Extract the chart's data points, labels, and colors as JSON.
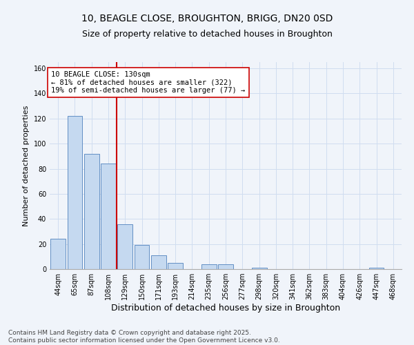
{
  "title_line1": "10, BEAGLE CLOSE, BROUGHTON, BRIGG, DN20 0SD",
  "title_line2": "Size of property relative to detached houses in Broughton",
  "categories": [
    "44sqm",
    "65sqm",
    "87sqm",
    "108sqm",
    "129sqm",
    "150sqm",
    "171sqm",
    "193sqm",
    "214sqm",
    "235sqm",
    "256sqm",
    "277sqm",
    "298sqm",
    "320sqm",
    "341sqm",
    "362sqm",
    "383sqm",
    "404sqm",
    "426sqm",
    "447sqm",
    "468sqm"
  ],
  "values": [
    24,
    122,
    92,
    84,
    36,
    19,
    11,
    5,
    0,
    4,
    4,
    0,
    1,
    0,
    0,
    0,
    0,
    0,
    0,
    1,
    0
  ],
  "bar_color": "#c5d9f0",
  "bar_edge_color": "#4f81bd",
  "vline_color": "#cc0000",
  "vline_x": 3.5,
  "annotation_text": "10 BEAGLE CLOSE: 130sqm\n← 81% of detached houses are smaller (322)\n19% of semi-detached houses are larger (77) →",
  "annotation_box_color": "#ffffff",
  "annotation_box_edge_color": "#cc0000",
  "xlabel": "Distribution of detached houses by size in Broughton",
  "ylabel": "Number of detached properties",
  "ylim": [
    0,
    165
  ],
  "yticks": [
    0,
    20,
    40,
    60,
    80,
    100,
    120,
    140,
    160
  ],
  "footer_line1": "Contains HM Land Registry data © Crown copyright and database right 2025.",
  "footer_line2": "Contains public sector information licensed under the Open Government Licence v3.0.",
  "background_color": "#f0f4fa",
  "plot_background_color": "#f0f4fa",
  "grid_color": "#d0ddf0",
  "title_fontsize": 10,
  "subtitle_fontsize": 9,
  "xlabel_fontsize": 9,
  "ylabel_fontsize": 8,
  "tick_fontsize": 7,
  "annotation_fontsize": 7.5,
  "footer_fontsize": 6.5
}
